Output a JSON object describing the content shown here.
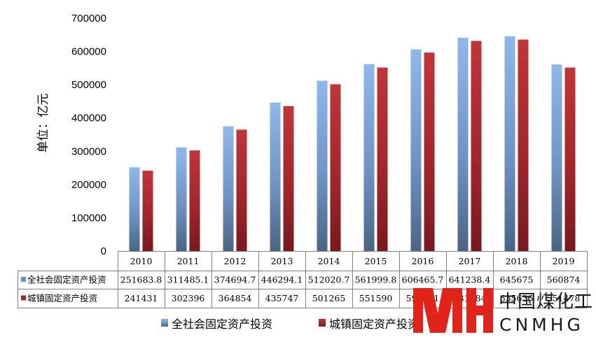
{
  "chart_data": {
    "type": "bar",
    "ylabel": "单位：亿元",
    "ylim": [
      0,
      700000
    ],
    "yticks": [
      "0",
      "100000",
      "200000",
      "300000",
      "400000",
      "500000",
      "600000",
      "700000"
    ],
    "categories": [
      "2010",
      "2011",
      "2012",
      "2013",
      "2014",
      "2015",
      "2016",
      "2017",
      "2018",
      "2019"
    ],
    "series": [
      {
        "name": "全社会固定资产投资",
        "color": "#6a90c6",
        "labels": [
          "251683.8",
          "311485.1",
          "374694.7",
          "446294.1",
          "512020.7",
          "561999.8",
          "606465.7",
          "641238.4",
          "645675",
          "560874"
        ],
        "values": [
          251683.8,
          311485.1,
          374694.7,
          446294.1,
          512020.7,
          561999.8,
          606465.7,
          641238.4,
          645675,
          560874
        ]
      },
      {
        "name": "城镇固定资产投资",
        "color": "#a8242a",
        "labels": [
          "241431",
          "302396",
          "364854",
          "435747",
          "501265",
          "551590",
          "596501",
          "631684",
          "635636",
          "551478"
        ],
        "values": [
          241431,
          302396,
          364854,
          435747,
          501265,
          551590,
          596501,
          631684,
          635636,
          551478
        ]
      }
    ],
    "grid": false,
    "legend": "bottom",
    "data_table": true
  },
  "watermark": {
    "cn": "中国煤化工",
    "en": "CNMHG",
    "color": "#e2231a"
  }
}
